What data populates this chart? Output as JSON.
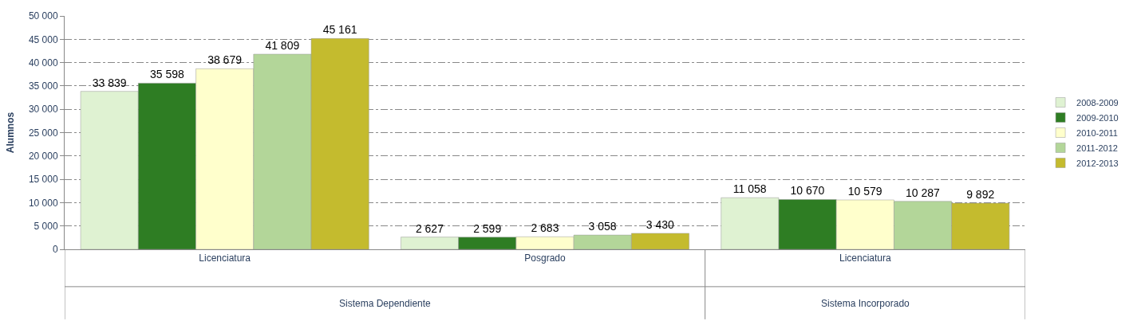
{
  "chart_data": {
    "type": "bar",
    "ylabel": "Alumnos",
    "categories": [
      "Licenciatura",
      "Posgrado",
      "Licenciatura"
    ],
    "series": [
      {
        "name": "2008-2009",
        "color": "#dff2d2",
        "values": [
          33839,
          2627,
          11058
        ],
        "value_labels": [
          "33 839",
          "2 627",
          "11 058"
        ]
      },
      {
        "name": "2009-2010",
        "color": "#2e7d23",
        "values": [
          35598,
          2599,
          10670
        ],
        "value_labels": [
          "35 598",
          "2 599",
          "10 670"
        ]
      },
      {
        "name": "2010-2011",
        "color": "#ffffcc",
        "values": [
          38679,
          2683,
          10579
        ],
        "value_labels": [
          "38 679",
          "2 683",
          "10 579"
        ]
      },
      {
        "name": "2011-2012",
        "color": "#b3d699",
        "values": [
          41809,
          3058,
          10287
        ],
        "value_labels": [
          "41 809",
          "3 058",
          "10 287"
        ]
      },
      {
        "name": "2012-2013",
        "color": "#c4bb2e",
        "values": [
          45161,
          3430,
          9892
        ],
        "value_labels": [
          "45 161",
          "3 430",
          "9 892"
        ]
      }
    ],
    "ylim": [
      0,
      50000
    ],
    "yticks": [
      0,
      {
        "value": 5000,
        "label": "5 000"
      },
      {
        "value": 10000,
        "label": "10 000"
      },
      {
        "value": 15000,
        "label": "15 000"
      },
      {
        "value": 20000,
        "label": "20 000"
      },
      {
        "value": 25000,
        "label": "25 000"
      },
      {
        "value": 30000,
        "label": "30 000"
      },
      {
        "value": 35000,
        "label": "35 000"
      },
      {
        "value": 40000,
        "label": "40 000"
      },
      {
        "value": 45000,
        "label": "45 000"
      },
      {
        "value": 50000,
        "label": "50 000"
      }
    ],
    "grid": "y",
    "legend": "right",
    "annotations": [
      "Sistema Dependiente",
      "Sistema Incorporado"
    ]
  }
}
